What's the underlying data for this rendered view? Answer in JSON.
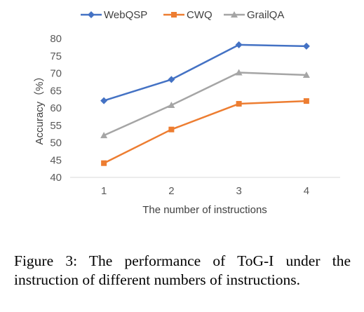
{
  "chart_data": {
    "type": "line",
    "title": "",
    "xlabel": "The number of instructions",
    "ylabel": "Accuracy（%）",
    "categories": [
      "1",
      "2",
      "3",
      "4"
    ],
    "ylim": [
      40,
      80
    ],
    "yticks": [
      "40",
      "45",
      "50",
      "55",
      "60",
      "65",
      "70",
      "75",
      "80"
    ],
    "grid": false,
    "legend_position": "top",
    "series": [
      {
        "name": "WebQSP",
        "values": [
          62.1,
          68.2,
          78.2,
          77.8
        ],
        "color": "#4472C4",
        "marker": "diamond"
      },
      {
        "name": "CWQ",
        "values": [
          44.1,
          53.8,
          61.2,
          62.0
        ],
        "color": "#ED7D31",
        "marker": "square"
      },
      {
        "name": "GrailQA",
        "values": [
          52.1,
          60.8,
          70.2,
          69.5
        ],
        "color": "#A5A5A5",
        "marker": "triangle"
      }
    ]
  },
  "caption": "Figure 3: The performance of ToG-I under the instruction of different numbers of instructions."
}
